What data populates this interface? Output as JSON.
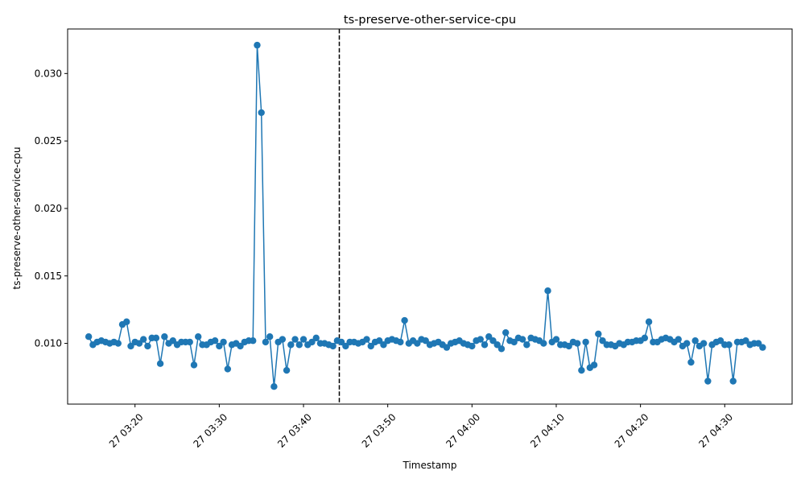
{
  "chart_data": {
    "type": "line",
    "title": "ts-preserve-other-service-cpu",
    "xlabel": "Timestamp",
    "ylabel": "ts-preserve-other-service-cpu",
    "x_start": "27 03:14:30",
    "x_step_seconds": 30,
    "xlim": [
      "27 03:12:00",
      "27 04:38:00"
    ],
    "ylim": [
      0.0055,
      0.0333
    ],
    "x_ticks": [
      {
        "at": "27 03:20:00",
        "label": "27 03:20"
      },
      {
        "at": "27 03:30:00",
        "label": "27 03:30"
      },
      {
        "at": "27 03:40:00",
        "label": "27 03:40"
      },
      {
        "at": "27 03:50:00",
        "label": "27 03:50"
      },
      {
        "at": "27 04:00:00",
        "label": "27 04:00"
      },
      {
        "at": "27 04:10:00",
        "label": "27 04:10"
      },
      {
        "at": "27 04:20:00",
        "label": "27 04:20"
      },
      {
        "at": "27 04:30:00",
        "label": "27 04:30"
      }
    ],
    "y_ticks": [
      {
        "value": 0.01,
        "label": "0.010"
      },
      {
        "value": 0.015,
        "label": "0.015"
      },
      {
        "value": 0.02,
        "label": "0.020"
      },
      {
        "value": 0.025,
        "label": "0.025"
      },
      {
        "value": 0.03,
        "label": "0.030"
      }
    ],
    "vline": {
      "at": "27 03:44:15",
      "style": "dashed",
      "color": "#000000"
    },
    "series": [
      {
        "color": "#1f77b4",
        "values": [
          0.0105,
          0.0099,
          0.0101,
          0.0102,
          0.0101,
          0.01,
          0.0101,
          0.01,
          0.0114,
          0.0116,
          0.0098,
          0.0101,
          0.01,
          0.0103,
          0.0098,
          0.0104,
          0.0104,
          0.0085,
          0.0105,
          0.01,
          0.0102,
          0.0099,
          0.0101,
          0.0101,
          0.0101,
          0.0084,
          0.0105,
          0.0099,
          0.0099,
          0.0101,
          0.0102,
          0.0098,
          0.0101,
          0.0081,
          0.0099,
          0.01,
          0.0098,
          0.0101,
          0.0102,
          0.0102,
          0.0321,
          0.0271,
          0.0101,
          0.0105,
          0.0068,
          0.0101,
          0.0103,
          0.008,
          0.0099,
          0.0103,
          0.0099,
          0.0103,
          0.0099,
          0.0101,
          0.0104,
          0.01,
          0.01,
          0.0099,
          0.0098,
          0.0102,
          0.0101,
          0.0098,
          0.0101,
          0.0101,
          0.01,
          0.0101,
          0.0103,
          0.0098,
          0.0101,
          0.0102,
          0.0099,
          0.0102,
          0.0103,
          0.0102,
          0.0101,
          0.0117,
          0.01,
          0.0102,
          0.01,
          0.0103,
          0.0102,
          0.0099,
          0.01,
          0.0101,
          0.0099,
          0.0097,
          0.01,
          0.0101,
          0.0102,
          0.01,
          0.0099,
          0.0098,
          0.0102,
          0.0103,
          0.0099,
          0.0105,
          0.0102,
          0.0099,
          0.0096,
          0.0108,
          0.0102,
          0.0101,
          0.0104,
          0.0103,
          0.0099,
          0.0104,
          0.0103,
          0.0102,
          0.01,
          0.0139,
          0.0101,
          0.0103,
          0.0099,
          0.0099,
          0.0098,
          0.0101,
          0.01,
          0.008,
          0.0101,
          0.0082,
          0.0084,
          0.0107,
          0.0102,
          0.0099,
          0.0099,
          0.0098,
          0.01,
          0.0099,
          0.0101,
          0.0101,
          0.0102,
          0.0102,
          0.0104,
          0.0116,
          0.0101,
          0.0101,
          0.0103,
          0.0104,
          0.0103,
          0.0101,
          0.0103,
          0.0098,
          0.01,
          0.0086,
          0.0102,
          0.0098,
          0.01,
          0.0072,
          0.0099,
          0.0101,
          0.0102,
          0.0099,
          0.0099,
          0.0072,
          0.0101,
          0.0101,
          0.0102,
          0.0099,
          0.01,
          0.01,
          0.0097
        ]
      }
    ]
  }
}
